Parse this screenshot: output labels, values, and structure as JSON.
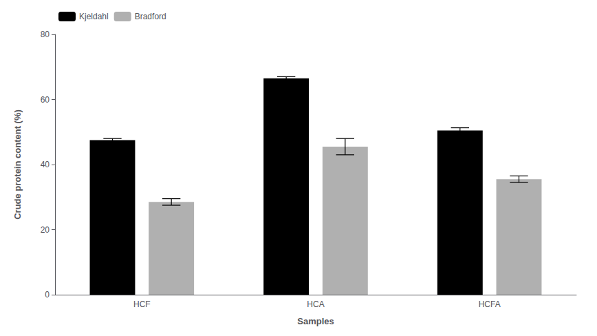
{
  "chart_data": {
    "type": "bar",
    "categories": [
      "HCF",
      "HCA",
      "HCFA"
    ],
    "series": [
      {
        "name": "Kjeldahl",
        "color": "#000000",
        "values": [
          47.5,
          66.5,
          50.5
        ],
        "errors": [
          0.5,
          0.5,
          0.8
        ]
      },
      {
        "name": "Bradford",
        "color": "#b0b0b0",
        "values": [
          28.5,
          45.5,
          35.5
        ],
        "errors": [
          1.0,
          2.5,
          1.0
        ]
      }
    ],
    "xlabel": "Samples",
    "ylabel": "Crude protein content (%)",
    "ylim": [
      0,
      80
    ],
    "yticks": [
      0,
      20,
      40,
      60,
      80
    ],
    "grid": false,
    "legend": "upper left"
  }
}
